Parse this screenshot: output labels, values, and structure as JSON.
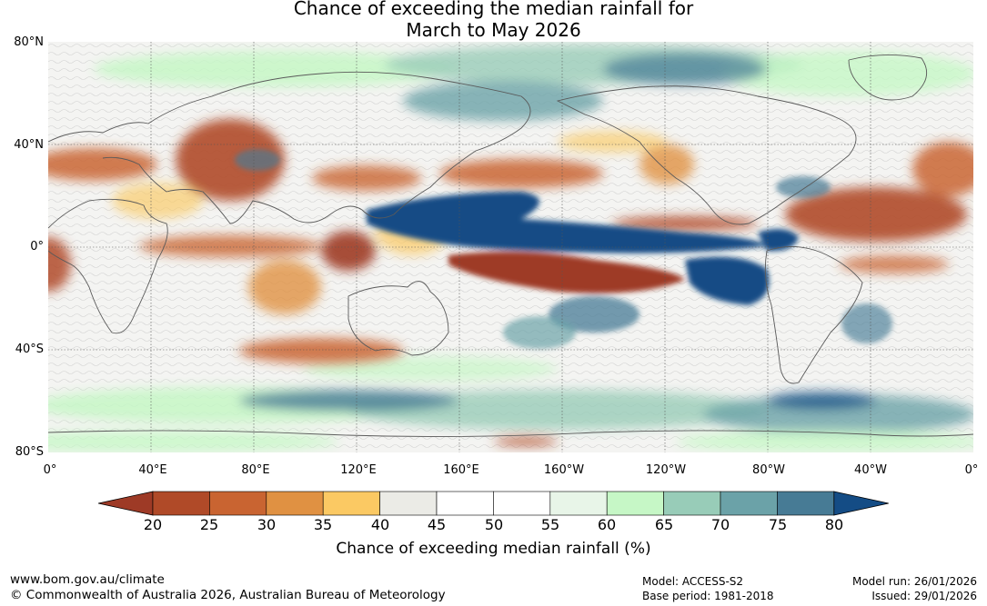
{
  "title": {
    "line1": "Chance of exceeding the median rainfall for",
    "line2": "March to May 2026"
  },
  "map": {
    "lat_labels": [
      "80°N",
      "40°N",
      "0°",
      "40°S",
      "80°S"
    ],
    "lon_labels": [
      "0°",
      "40°E",
      "80°E",
      "120°E",
      "160°E",
      "160°W",
      "120°W",
      "80°W",
      "40°W",
      "0°"
    ]
  },
  "colorbar": {
    "ticks": [
      "20",
      "25",
      "30",
      "35",
      "40",
      "45",
      "50",
      "55",
      "60",
      "65",
      "70",
      "75",
      "80"
    ],
    "colors": [
      "#9e3a26",
      "#b04a28",
      "#c96431",
      "#e09142",
      "#fbc963",
      "#ebebe6",
      "#ffffff",
      "#ffffff",
      "#e8f5e8",
      "#c6f7c6",
      "#98ccb8",
      "#6ba2a8",
      "#477b95",
      "#144c85"
    ],
    "label": "Chance of exceeding median rainfall (%)"
  },
  "footer": {
    "url": "www.bom.gov.au/climate",
    "copyright": "© Commonwealth of Australia 2026, Australian Bureau of Meteorology",
    "model": "Model: ACCESS-S2",
    "base_period": "Base period: 1981-2018",
    "model_run": "Model run: 26/01/2026",
    "issued": "Issued: 29/01/2026"
  }
}
